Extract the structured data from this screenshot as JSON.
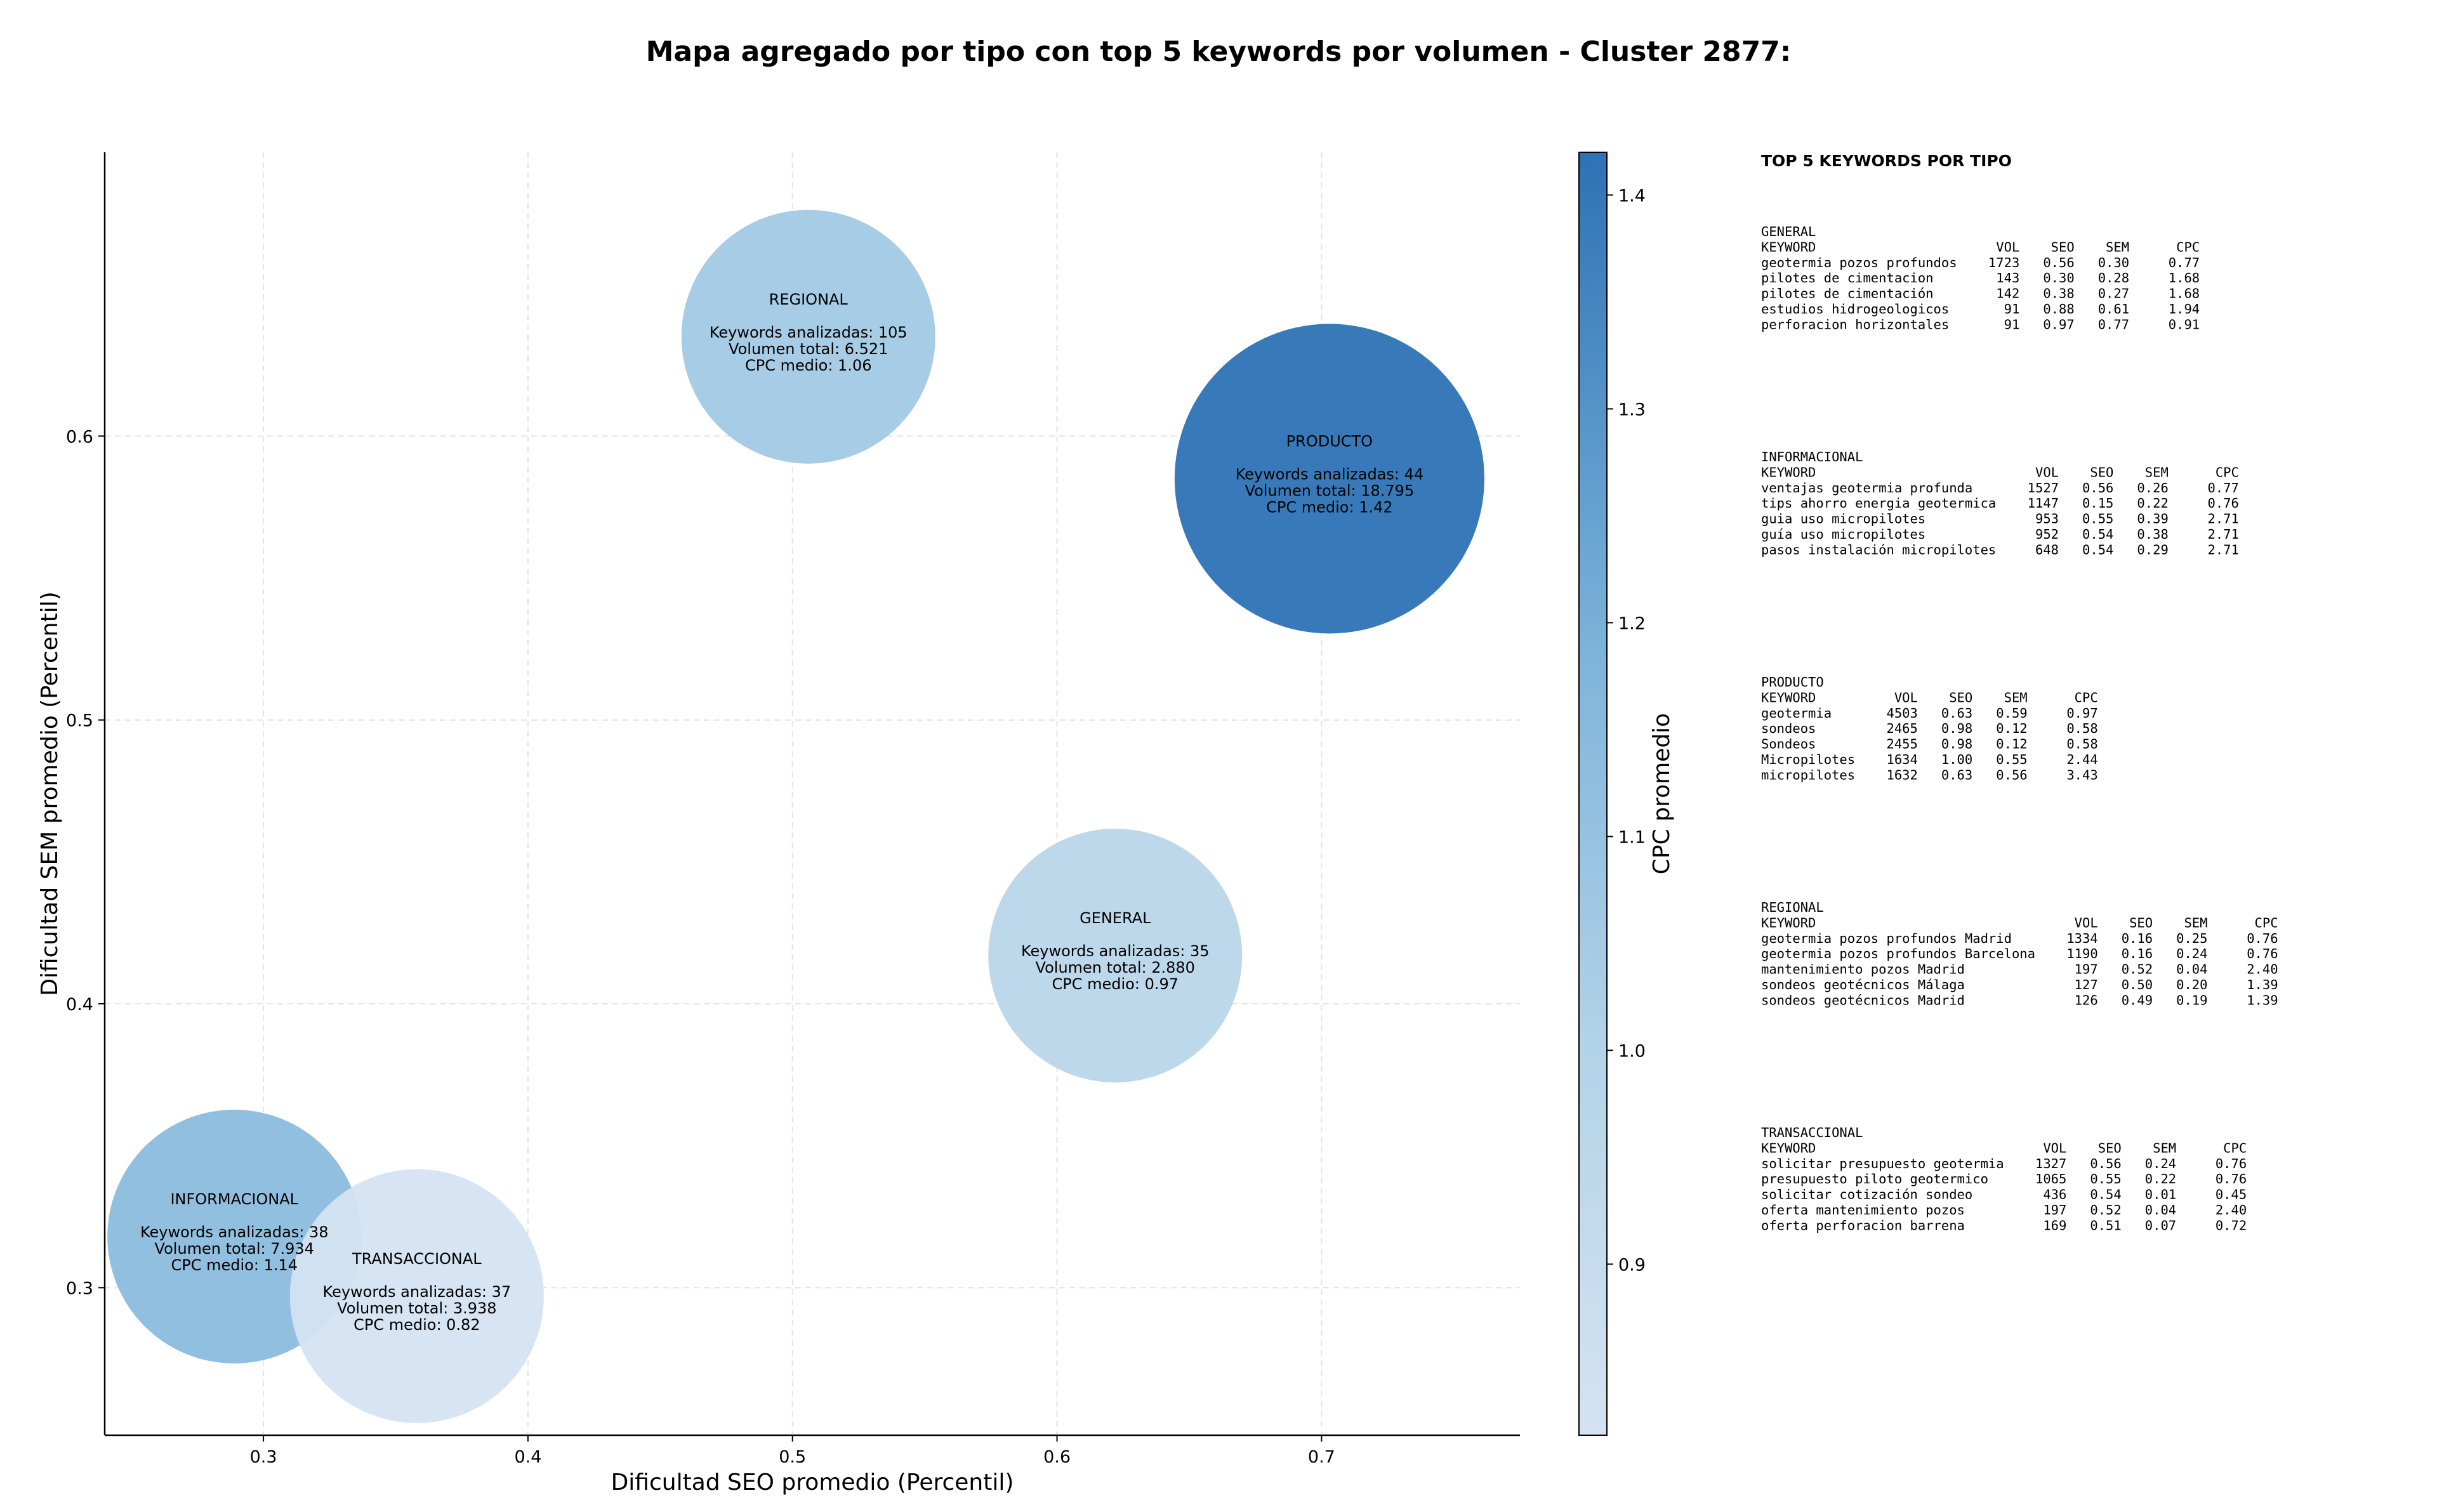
{
  "chart_data": {
    "type": "scatter",
    "title": "Mapa agregado por tipo con top 5 keywords por volumen - Cluster 2877:",
    "xlabel": "Dificultad SEO promedio (Percentil)",
    "ylabel": "Dificultad SEM promedio (Percentil)",
    "xlim": [
      0.24,
      0.775
    ],
    "ylim": [
      0.248,
      0.7
    ],
    "xticks": [
      "0.3",
      "0.4",
      "0.5",
      "0.6",
      "0.7"
    ],
    "yticks": [
      "0.3",
      "0.4",
      "0.5",
      "0.6"
    ],
    "grid": true,
    "colorbar": {
      "label": "CPC promedio",
      "min": 0.82,
      "max": 1.42,
      "ticks": [
        "0.9",
        "1.0",
        "1.1",
        "1.2",
        "1.3",
        "1.4"
      ],
      "low_color": "#d4e3f2",
      "high_color": "#2c72b5"
    },
    "stats_labels": {
      "keywords": "Keywords analizadas: ",
      "volume": "Volumen total: ",
      "cpc": "CPC medio: "
    },
    "points": [
      {
        "name": "REGIONAL",
        "x": 0.506,
        "y": 0.635,
        "keywords": "105",
        "volume": 6521,
        "volume_text": "6.521",
        "cpc": 1.06,
        "cpc_text": "1.06"
      },
      {
        "name": "PRODUCTO",
        "x": 0.703,
        "y": 0.585,
        "keywords": "44",
        "volume": 18795,
        "volume_text": "18.795",
        "cpc": 1.42,
        "cpc_text": "1.42"
      },
      {
        "name": "GENERAL",
        "x": 0.622,
        "y": 0.417,
        "keywords": "35",
        "volume": 2880,
        "volume_text": "2.880",
        "cpc": 0.97,
        "cpc_text": "0.97"
      },
      {
        "name": "INFORMACIONAL",
        "x": 0.289,
        "y": 0.318,
        "keywords": "38",
        "volume": 7934,
        "volume_text": "7.934",
        "cpc": 1.14,
        "cpc_text": "1.14"
      },
      {
        "name": "TRANSACCIONAL",
        "x": 0.358,
        "y": 0.297,
        "keywords": "37",
        "volume": 3938,
        "volume_text": "3.938",
        "cpc": 0.82,
        "cpc_text": "0.82"
      }
    ]
  },
  "sidebar": {
    "title": "TOP 5 KEYWORDS POR TIPO",
    "header": [
      "KEYWORD",
      "VOL",
      "SEO",
      "SEM",
      "CPC"
    ],
    "groups": [
      {
        "name": "GENERAL",
        "rows": [
          [
            "geotermia pozos profundos",
            "1723",
            "0.56",
            "0.30",
            "0.77"
          ],
          [
            "pilotes de cimentacion",
            "143",
            "0.30",
            "0.28",
            "1.68"
          ],
          [
            "pilotes de cimentación",
            "142",
            "0.38",
            "0.27",
            "1.68"
          ],
          [
            "estudios hidrogeologicos",
            "91",
            "0.88",
            "0.61",
            "1.94"
          ],
          [
            "perforacion horizontales",
            "91",
            "0.97",
            "0.77",
            "0.91"
          ]
        ]
      },
      {
        "name": "INFORMACIONAL",
        "rows": [
          [
            "ventajas geotermia profunda",
            "1527",
            "0.56",
            "0.26",
            "0.77"
          ],
          [
            "tips ahorro energia geotermica",
            "1147",
            "0.15",
            "0.22",
            "0.76"
          ],
          [
            "guia uso micropilotes",
            "953",
            "0.55",
            "0.39",
            "2.71"
          ],
          [
            "guía uso micropilotes",
            "952",
            "0.54",
            "0.38",
            "2.71"
          ],
          [
            "pasos instalación micropilotes",
            "648",
            "0.54",
            "0.29",
            "2.71"
          ]
        ]
      },
      {
        "name": "PRODUCTO",
        "rows": [
          [
            "geotermia",
            "4503",
            "0.63",
            "0.59",
            "0.97"
          ],
          [
            "sondeos",
            "2465",
            "0.98",
            "0.12",
            "0.58"
          ],
          [
            "Sondeos",
            "2455",
            "0.98",
            "0.12",
            "0.58"
          ],
          [
            "Micropilotes",
            "1634",
            "1.00",
            "0.55",
            "2.44"
          ],
          [
            "micropilotes",
            "1632",
            "0.63",
            "0.56",
            "3.43"
          ]
        ]
      },
      {
        "name": "REGIONAL",
        "rows": [
          [
            "geotermia pozos profundos Madrid",
            "1334",
            "0.16",
            "0.25",
            "0.76"
          ],
          [
            "geotermia pozos profundos Barcelona",
            "1190",
            "0.16",
            "0.24",
            "0.76"
          ],
          [
            "mantenimiento pozos Madrid",
            "197",
            "0.52",
            "0.04",
            "2.40"
          ],
          [
            "sondeos geotécnicos Málaga",
            "127",
            "0.50",
            "0.20",
            "1.39"
          ],
          [
            "sondeos geotécnicos Madrid",
            "126",
            "0.49",
            "0.19",
            "1.39"
          ]
        ]
      },
      {
        "name": "TRANSACCIONAL",
        "rows": [
          [
            "solicitar presupuesto geotermia",
            "1327",
            "0.56",
            "0.24",
            "0.76"
          ],
          [
            "presupuesto piloto geotermico",
            "1065",
            "0.55",
            "0.22",
            "0.76"
          ],
          [
            "solicitar cotización sondeo",
            "436",
            "0.54",
            "0.01",
            "0.45"
          ],
          [
            "oferta mantenimiento pozos",
            "197",
            "0.52",
            "0.04",
            "2.40"
          ],
          [
            "oferta perforacion barrena",
            "169",
            "0.51",
            "0.07",
            "0.72"
          ]
        ]
      }
    ]
  }
}
